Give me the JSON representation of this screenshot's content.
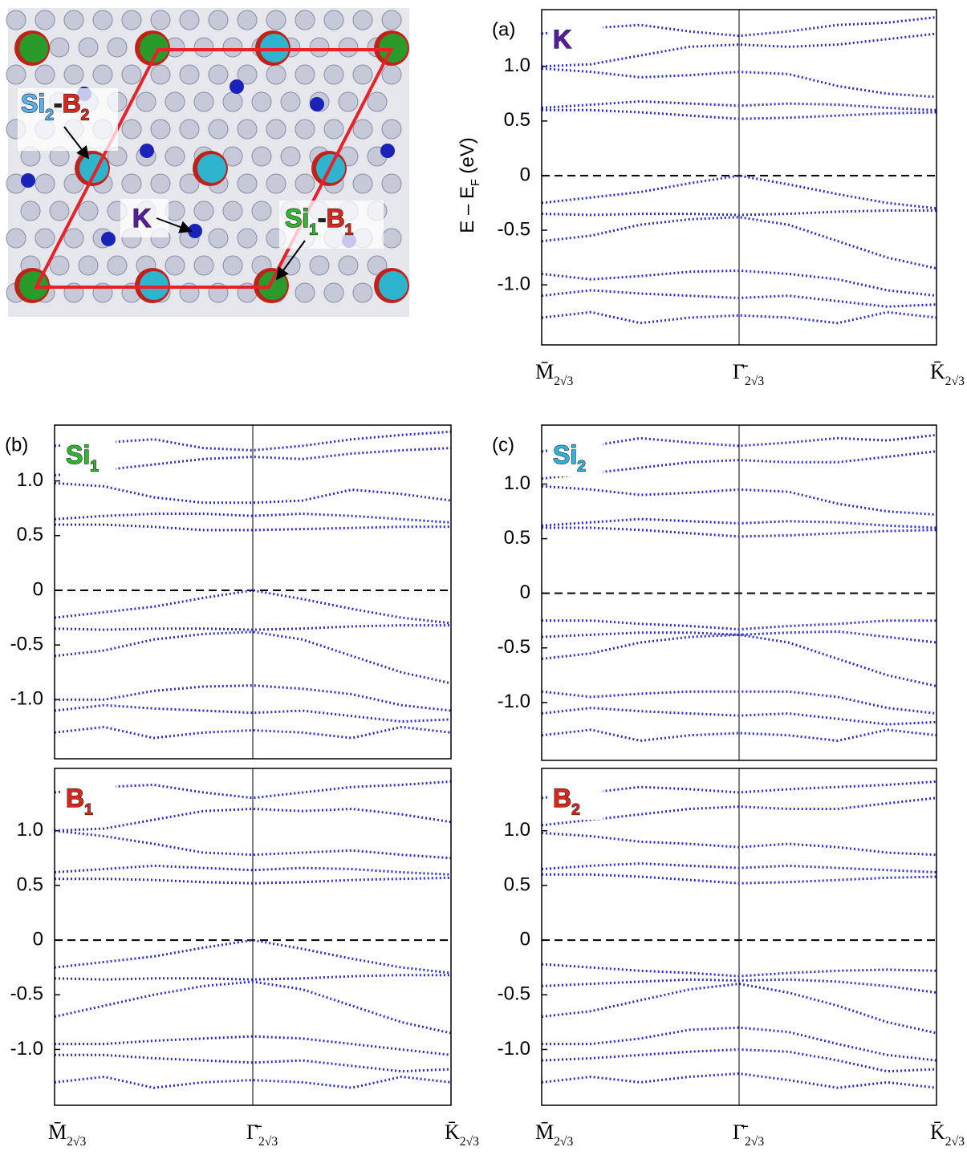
{
  "structure": {
    "labels": [
      {
        "a": "Si",
        "a_sub": "2",
        "sep": "-",
        "b": "B",
        "b_sub": "2"
      },
      {
        "a": "K"
      },
      {
        "a": "Si",
        "a_sub": "1",
        "sep": "-",
        "b": "B",
        "b_sub": "1"
      }
    ]
  },
  "chart_data": [
    {
      "type": "line",
      "panel_label": "(a)",
      "annotation": {
        "text": "K",
        "color": "#5a1c9e"
      },
      "ylabel": {
        "text": "E – E",
        "sub": "F",
        "after": " (eV)"
      },
      "x": [
        0,
        0.25,
        0.5,
        0.75,
        1,
        1.25,
        1.5,
        1.75,
        2
      ],
      "xlim": [
        0,
        2
      ],
      "xticks": [
        {
          "value": 0,
          "label": "M̄",
          "subscript": "2√3"
        },
        {
          "value": 1,
          "label": "Γ̄",
          "subscript": "2√3"
        },
        {
          "value": 2,
          "label": "K̄",
          "subscript": "2√3"
        }
      ],
      "ylim": [
        -1.55,
        1.52
      ],
      "yticks": [
        {
          "value": -1,
          "label": "-1.0"
        },
        -0.5,
        0,
        0.5,
        {
          "value": 1,
          "label": "1.0"
        }
      ],
      "series": [
        {
          "color": "#2b2bd0",
          "values": [
            0.6,
            0.6,
            0.58,
            0.55,
            0.52,
            0.53,
            0.55,
            0.57,
            0.58
          ]
        },
        {
          "color": "#2b2bd0",
          "values": [
            0.62,
            0.65,
            0.68,
            0.66,
            0.64,
            0.66,
            0.65,
            0.62,
            0.6
          ]
        },
        {
          "color": "#2b2bd0",
          "values": [
            0.98,
            0.95,
            0.9,
            0.92,
            0.95,
            0.93,
            0.82,
            0.75,
            0.72
          ]
        },
        {
          "color": "#2b2bd0",
          "values": [
            1.0,
            1.02,
            1.1,
            1.18,
            1.2,
            1.18,
            1.2,
            1.25,
            1.3
          ]
        },
        {
          "color": "#2b2bd0",
          "values": [
            1.3,
            1.35,
            1.38,
            1.32,
            1.28,
            1.32,
            1.38,
            1.4,
            1.45
          ]
        },
        {
          "color": "#2b2bd0",
          "values": [
            -0.25,
            -0.2,
            -0.15,
            -0.07,
            0,
            -0.08,
            -0.17,
            -0.25,
            -0.3
          ]
        },
        {
          "color": "#2b2bd0",
          "values": [
            -0.35,
            -0.36,
            -0.35,
            -0.35,
            -0.36,
            -0.35,
            -0.33,
            -0.32,
            -0.32
          ]
        },
        {
          "color": "#2b2bd0",
          "values": [
            -0.6,
            -0.55,
            -0.45,
            -0.4,
            -0.38,
            -0.45,
            -0.6,
            -0.75,
            -0.85
          ]
        },
        {
          "color": "#2b2bd0",
          "values": [
            -0.9,
            -0.95,
            -0.92,
            -0.88,
            -0.87,
            -0.9,
            -0.95,
            -1.05,
            -1.1
          ]
        },
        {
          "color": "#2b2bd0",
          "values": [
            -1.1,
            -1.05,
            -1.08,
            -1.1,
            -1.12,
            -1.1,
            -1.15,
            -1.2,
            -1.18
          ]
        },
        {
          "color": "#2b2bd0",
          "values": [
            -1.3,
            -1.25,
            -1.35,
            -1.3,
            -1.28,
            -1.3,
            -1.35,
            -1.25,
            -1.3
          ]
        }
      ]
    },
    {
      "type": "line",
      "panel_label": "(b)",
      "annotation": {
        "text": "Si",
        "sub": "1",
        "color": "#2fb82f"
      },
      "x": [
        0,
        0.25,
        0.5,
        0.75,
        1,
        1.25,
        1.5,
        1.75,
        2
      ],
      "xlim": [
        0,
        2
      ],
      "ylim": [
        -1.54,
        1.51
      ],
      "yticks": [
        {
          "value": -1,
          "label": "-1.0"
        },
        -0.5,
        0,
        0.5,
        {
          "value": 1,
          "label": "1.0"
        }
      ],
      "series": [
        {
          "color": "#2b2bd0",
          "values": [
            0.6,
            0.6,
            0.58,
            0.55,
            0.55,
            0.56,
            0.57,
            0.58,
            0.58
          ]
        },
        {
          "color": "#2b2bd0",
          "values": [
            0.65,
            0.68,
            0.7,
            0.7,
            0.68,
            0.7,
            0.68,
            0.65,
            0.62
          ]
        },
        {
          "color": "#2b2bd0",
          "values": [
            0.98,
            0.95,
            0.85,
            0.8,
            0.8,
            0.82,
            0.92,
            0.88,
            0.82
          ]
        },
        {
          "color": "#2b2bd0",
          "values": [
            1.05,
            1.1,
            1.15,
            1.2,
            1.22,
            1.2,
            1.25,
            1.28,
            1.3
          ]
        },
        {
          "color": "#2b2bd0",
          "values": [
            1.32,
            1.35,
            1.38,
            1.3,
            1.28,
            1.32,
            1.38,
            1.42,
            1.45
          ]
        },
        {
          "color": "#2b2bd0",
          "values": [
            -0.25,
            -0.2,
            -0.15,
            -0.07,
            0,
            -0.08,
            -0.17,
            -0.25,
            -0.3
          ]
        },
        {
          "color": "#2b2bd0",
          "values": [
            -0.35,
            -0.36,
            -0.35,
            -0.35,
            -0.36,
            -0.35,
            -0.33,
            -0.32,
            -0.32
          ]
        },
        {
          "color": "#2b2bd0",
          "values": [
            -0.6,
            -0.55,
            -0.45,
            -0.4,
            -0.38,
            -0.45,
            -0.6,
            -0.75,
            -0.85
          ]
        },
        {
          "color": "#2b2bd0",
          "values": [
            -1.0,
            -1.0,
            -0.92,
            -0.88,
            -0.87,
            -0.9,
            -0.95,
            -1.05,
            -1.1
          ]
        },
        {
          "color": "#2b2bd0",
          "values": [
            -1.1,
            -1.05,
            -1.08,
            -1.1,
            -1.12,
            -1.1,
            -1.15,
            -1.2,
            -1.18
          ]
        },
        {
          "color": "#2b2bd0",
          "values": [
            -1.3,
            -1.25,
            -1.35,
            -1.3,
            -1.28,
            -1.3,
            -1.35,
            -1.25,
            -1.3
          ]
        }
      ]
    },
    {
      "type": "line",
      "annotation": {
        "text": "B",
        "sub": "1",
        "color": "#d8281c"
      },
      "x": [
        0,
        0.25,
        0.5,
        0.75,
        1,
        1.25,
        1.5,
        1.75,
        2
      ],
      "xlim": [
        0,
        2
      ],
      "xticks": [
        {
          "value": 0,
          "label": "M̄",
          "subscript": "2√3"
        },
        {
          "value": 1,
          "label": "Γ̄",
          "subscript": "2√3"
        },
        {
          "value": 2,
          "label": "K̄",
          "subscript": "2√3"
        }
      ],
      "ylim": [
        -1.51,
        1.57
      ],
      "yticks": [
        {
          "value": -1,
          "label": "-1.0"
        },
        -0.5,
        0,
        0.5,
        {
          "value": 1,
          "label": "1.0"
        }
      ],
      "series": [
        {
          "color": "#2b2bd0",
          "values": [
            0.56,
            0.56,
            0.55,
            0.53,
            0.52,
            0.53,
            0.55,
            0.56,
            0.57
          ]
        },
        {
          "color": "#2b2bd0",
          "values": [
            0.62,
            0.65,
            0.68,
            0.66,
            0.64,
            0.66,
            0.65,
            0.62,
            0.6
          ]
        },
        {
          "color": "#2b2bd0",
          "values": [
            1.0,
            0.95,
            0.88,
            0.8,
            0.78,
            0.8,
            0.82,
            0.78,
            0.75
          ]
        },
        {
          "color": "#2b2bd0",
          "values": [
            1.0,
            1.02,
            1.1,
            1.18,
            1.2,
            1.18,
            1.2,
            1.15,
            1.08
          ]
        },
        {
          "color": "#2b2bd0",
          "values": [
            1.35,
            1.4,
            1.42,
            1.35,
            1.3,
            1.35,
            1.4,
            1.42,
            1.45
          ]
        },
        {
          "color": "#2b2bd0",
          "values": [
            -0.25,
            -0.2,
            -0.15,
            -0.07,
            0,
            -0.08,
            -0.17,
            -0.25,
            -0.3
          ]
        },
        {
          "color": "#2b2bd0",
          "values": [
            -0.35,
            -0.36,
            -0.35,
            -0.35,
            -0.36,
            -0.35,
            -0.33,
            -0.32,
            -0.32
          ]
        },
        {
          "color": "#2b2bd0",
          "values": [
            -0.7,
            -0.6,
            -0.5,
            -0.42,
            -0.38,
            -0.45,
            -0.6,
            -0.75,
            -0.85
          ]
        },
        {
          "color": "#2b2bd0",
          "values": [
            -0.95,
            -0.95,
            -0.92,
            -0.9,
            -0.88,
            -0.9,
            -0.95,
            -1.0,
            -1.05
          ]
        },
        {
          "color": "#2b2bd0",
          "values": [
            -1.05,
            -1.05,
            -1.08,
            -1.1,
            -1.12,
            -1.1,
            -1.15,
            -1.2,
            -1.18
          ]
        },
        {
          "color": "#2b2bd0",
          "values": [
            -1.3,
            -1.25,
            -1.35,
            -1.3,
            -1.28,
            -1.3,
            -1.35,
            -1.25,
            -1.3
          ]
        }
      ]
    },
    {
      "type": "line",
      "panel_label": "(c)",
      "annotation": {
        "text": "Si",
        "sub": "2",
        "color": "#29b6e0"
      },
      "x": [
        0,
        0.25,
        0.5,
        0.75,
        1,
        1.25,
        1.5,
        1.75,
        2
      ],
      "xlim": [
        0,
        2
      ],
      "ylim": [
        -1.53,
        1.54
      ],
      "yticks": [
        {
          "value": -1,
          "label": "-1.0"
        },
        -0.5,
        0,
        0.5,
        {
          "value": 1,
          "label": "1.0"
        }
      ],
      "series": [
        {
          "color": "#2b2bd0",
          "values": [
            0.6,
            0.6,
            0.58,
            0.55,
            0.52,
            0.53,
            0.55,
            0.57,
            0.58
          ]
        },
        {
          "color": "#2b2bd0",
          "values": [
            0.62,
            0.65,
            0.68,
            0.66,
            0.64,
            0.66,
            0.65,
            0.62,
            0.6
          ]
        },
        {
          "color": "#2b2bd0",
          "values": [
            0.98,
            0.95,
            0.9,
            0.92,
            0.95,
            0.93,
            0.82,
            0.75,
            0.72
          ]
        },
        {
          "color": "#2b2bd0",
          "values": [
            1.05,
            1.1,
            1.15,
            1.2,
            1.22,
            1.2,
            1.2,
            1.25,
            1.3
          ]
        },
        {
          "color": "#2b2bd0",
          "values": [
            1.3,
            1.35,
            1.42,
            1.38,
            1.35,
            1.38,
            1.42,
            1.4,
            1.45
          ]
        },
        {
          "color": "#2b2bd0",
          "values": [
            -0.25,
            -0.25,
            -0.28,
            -0.3,
            -0.33,
            -0.3,
            -0.28,
            -0.25,
            -0.25
          ]
        },
        {
          "color": "#2b2bd0",
          "values": [
            -0.4,
            -0.38,
            -0.36,
            -0.36,
            -0.38,
            -0.36,
            -0.35,
            -0.4,
            -0.45
          ]
        },
        {
          "color": "#2b2bd0",
          "values": [
            -0.6,
            -0.55,
            -0.45,
            -0.4,
            -0.38,
            -0.45,
            -0.6,
            -0.75,
            -0.85
          ]
        },
        {
          "color": "#2b2bd0",
          "values": [
            -0.9,
            -0.95,
            -0.92,
            -0.9,
            -0.9,
            -0.9,
            -0.95,
            -1.05,
            -1.1
          ]
        },
        {
          "color": "#2b2bd0",
          "values": [
            -1.1,
            -1.05,
            -1.08,
            -1.1,
            -1.12,
            -1.1,
            -1.15,
            -1.2,
            -1.18
          ]
        },
        {
          "color": "#2b2bd0",
          "values": [
            -1.3,
            -1.25,
            -1.35,
            -1.3,
            -1.28,
            -1.3,
            -1.35,
            -1.25,
            -1.3
          ]
        }
      ]
    },
    {
      "type": "line",
      "annotation": {
        "text": "B",
        "sub": "2",
        "color": "#d8281c"
      },
      "x": [
        0,
        0.25,
        0.5,
        0.75,
        1,
        1.25,
        1.5,
        1.75,
        2
      ],
      "xlim": [
        0,
        2
      ],
      "xticks": [
        {
          "value": 0,
          "label": "M̄",
          "subscript": "2√3"
        },
        {
          "value": 1,
          "label": "Γ̄",
          "subscript": "2√3"
        },
        {
          "value": 2,
          "label": "K̄",
          "subscript": "2√3"
        }
      ],
      "ylim": [
        -1.51,
        1.57
      ],
      "yticks": [
        {
          "value": -1,
          "label": "-1.0"
        },
        -0.5,
        0,
        0.5,
        {
          "value": 1,
          "label": "1.0"
        }
      ],
      "series": [
        {
          "color": "#2b2bd0",
          "values": [
            0.6,
            0.6,
            0.58,
            0.55,
            0.52,
            0.53,
            0.55,
            0.57,
            0.58
          ]
        },
        {
          "color": "#2b2bd0",
          "values": [
            0.65,
            0.68,
            0.7,
            0.68,
            0.66,
            0.68,
            0.66,
            0.64,
            0.62
          ]
        },
        {
          "color": "#2b2bd0",
          "values": [
            0.98,
            0.95,
            0.9,
            0.88,
            0.85,
            0.88,
            0.85,
            0.8,
            0.78
          ]
        },
        {
          "color": "#2b2bd0",
          "values": [
            1.05,
            1.1,
            1.15,
            1.2,
            1.22,
            1.2,
            1.2,
            1.25,
            1.3
          ]
        },
        {
          "color": "#2b2bd0",
          "values": [
            1.3,
            1.35,
            1.4,
            1.38,
            1.35,
            1.38,
            1.4,
            1.42,
            1.45
          ]
        },
        {
          "color": "#2b2bd0",
          "values": [
            -0.22,
            -0.25,
            -0.28,
            -0.3,
            -0.33,
            -0.3,
            -0.28,
            -0.27,
            -0.28
          ]
        },
        {
          "color": "#2b2bd0",
          "values": [
            -0.42,
            -0.4,
            -0.38,
            -0.36,
            -0.37,
            -0.36,
            -0.38,
            -0.42,
            -0.48
          ]
        },
        {
          "color": "#2b2bd0",
          "values": [
            -0.7,
            -0.65,
            -0.55,
            -0.45,
            -0.4,
            -0.48,
            -0.6,
            -0.75,
            -0.85
          ]
        },
        {
          "color": "#2b2bd0",
          "values": [
            -0.95,
            -0.95,
            -0.9,
            -0.82,
            -0.8,
            -0.84,
            -0.95,
            -1.05,
            -1.1
          ]
        },
        {
          "color": "#2b2bd0",
          "values": [
            -1.1,
            -1.08,
            -1.05,
            -1.02,
            -1.0,
            -1.02,
            -1.1,
            -1.2,
            -1.18
          ]
        },
        {
          "color": "#2b2bd0",
          "values": [
            -1.3,
            -1.25,
            -1.3,
            -1.25,
            -1.22,
            -1.28,
            -1.35,
            -1.3,
            -1.35
          ]
        }
      ]
    }
  ]
}
